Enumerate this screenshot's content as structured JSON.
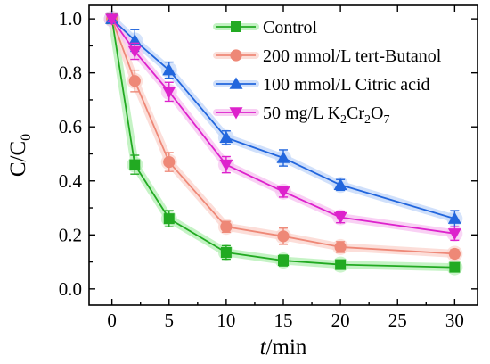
{
  "chart_data": {
    "type": "line",
    "xlabel": "t/min",
    "ylabel": "C/C0",
    "xlim": [
      -2,
      32
    ],
    "ylim": [
      -0.06,
      1.05
    ],
    "xticks": [
      "0",
      "5",
      "10",
      "15",
      "20",
      "25",
      "30"
    ],
    "yticks": [
      "0.0",
      "0.2",
      "0.4",
      "0.6",
      "0.8",
      "1.0"
    ],
    "legend_position": "top-right",
    "x": [
      0,
      2,
      5,
      10,
      15,
      20,
      30
    ],
    "series": [
      {
        "name": "Control",
        "color": "#22aa22",
        "glow": "#b6f0b6",
        "marker": "square",
        "values": [
          1.0,
          0.46,
          0.26,
          0.135,
          0.105,
          0.09,
          0.08
        ],
        "errors": [
          0.01,
          0.035,
          0.03,
          0.025,
          0.02,
          0.01,
          0.01
        ]
      },
      {
        "name": "200 mmol/L tert-Butanol",
        "color": "#ee8877",
        "glow": "#fbd6cf",
        "marker": "circle",
        "values": [
          1.0,
          0.77,
          0.47,
          0.23,
          0.195,
          0.155,
          0.13
        ],
        "errors": [
          0.01,
          0.04,
          0.035,
          0.02,
          0.03,
          0.02,
          0.015
        ]
      },
      {
        "name": "100 mmol/L Citric acid",
        "color": "#2266dd",
        "glow": "#c4d8fa",
        "marker": "triangle-up",
        "values": [
          1.0,
          0.92,
          0.81,
          0.56,
          0.485,
          0.385,
          0.26
        ],
        "errors": [
          0.01,
          0.04,
          0.03,
          0.025,
          0.03,
          0.02,
          0.03
        ]
      },
      {
        "name": "50 mg/L K2Cr2O7",
        "color": "#dd22cc",
        "glow": "#f7c4f1",
        "marker": "triangle-down",
        "values": [
          1.0,
          0.88,
          0.73,
          0.46,
          0.36,
          0.265,
          0.205
        ],
        "errors": [
          0.01,
          0.03,
          0.035,
          0.03,
          0.02,
          0.02,
          0.025
        ]
      }
    ]
  }
}
